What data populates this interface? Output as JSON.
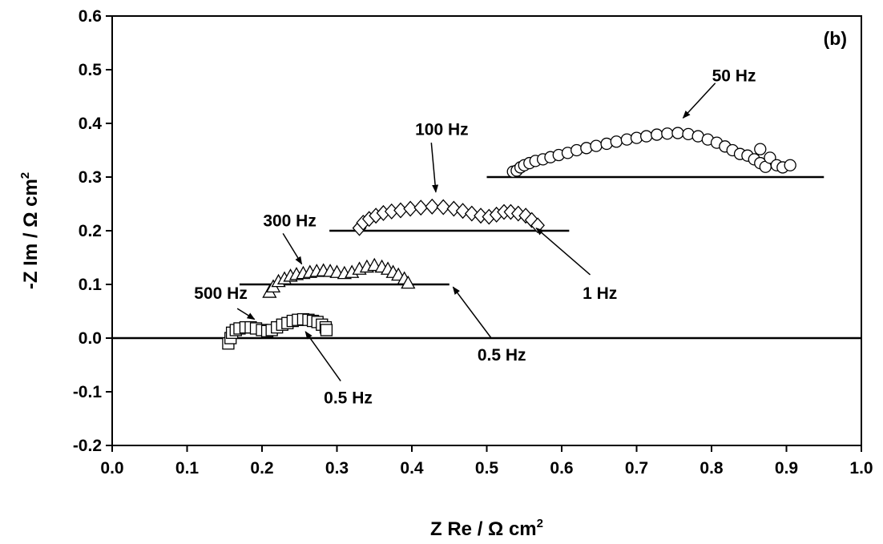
{
  "chart_data": {
    "type": "scatter",
    "panel_label": "(b)",
    "xlabel": {
      "main": "Z Re / Ω cm",
      "sup": "2"
    },
    "ylabel": {
      "main": "-Z Im / Ω cm",
      "sup": "2"
    },
    "xlim": [
      0.0,
      1.0
    ],
    "ylim": [
      -0.2,
      0.6
    ],
    "x_ticks": [
      0.0,
      0.1,
      0.2,
      0.3,
      0.4,
      0.5,
      0.6,
      0.7,
      0.8,
      0.9,
      1.0
    ],
    "y_ticks": [
      -0.2,
      -0.1,
      0.0,
      0.1,
      0.2,
      0.3,
      0.4,
      0.5,
      0.6
    ],
    "x_tick_labels": [
      "0.0",
      "0.1",
      "0.2",
      "0.3",
      "0.4",
      "0.5",
      "0.6",
      "0.7",
      "0.8",
      "0.9",
      "1.0"
    ],
    "y_tick_labels": [
      "-0.2",
      "-0.1",
      "0.0",
      "0.1",
      "0.2",
      "0.3",
      "0.4",
      "0.5",
      "0.6"
    ],
    "grid": false,
    "baselines": [
      {
        "y": 0.0,
        "x": [
          0.0,
          1.0
        ]
      },
      {
        "y": 0.1,
        "x": [
          0.17,
          0.45
        ]
      },
      {
        "y": 0.2,
        "x": [
          0.29,
          0.61
        ]
      },
      {
        "y": 0.3,
        "x": [
          0.5,
          0.95
        ]
      }
    ],
    "series": [
      {
        "marker": "square",
        "points": [
          [
            0.155,
            -0.01
          ],
          [
            0.158,
            0.0
          ],
          [
            0.16,
            0.01
          ],
          [
            0.165,
            0.015
          ],
          [
            0.17,
            0.018
          ],
          [
            0.178,
            0.02
          ],
          [
            0.185,
            0.02
          ],
          [
            0.192,
            0.018
          ],
          [
            0.2,
            0.015
          ],
          [
            0.207,
            0.013
          ],
          [
            0.213,
            0.015
          ],
          [
            0.22,
            0.02
          ],
          [
            0.227,
            0.025
          ],
          [
            0.234,
            0.028
          ],
          [
            0.241,
            0.032
          ],
          [
            0.248,
            0.034
          ],
          [
            0.255,
            0.035
          ],
          [
            0.262,
            0.034
          ],
          [
            0.268,
            0.032
          ],
          [
            0.274,
            0.03
          ],
          [
            0.28,
            0.025
          ],
          [
            0.285,
            0.02
          ],
          [
            0.286,
            0.015
          ]
        ]
      },
      {
        "marker": "triangle",
        "points": [
          [
            0.21,
            0.085
          ],
          [
            0.215,
            0.095
          ],
          [
            0.222,
            0.105
          ],
          [
            0.23,
            0.11
          ],
          [
            0.238,
            0.115
          ],
          [
            0.246,
            0.118
          ],
          [
            0.255,
            0.12
          ],
          [
            0.264,
            0.122
          ],
          [
            0.273,
            0.124
          ],
          [
            0.282,
            0.125
          ],
          [
            0.291,
            0.124
          ],
          [
            0.3,
            0.122
          ],
          [
            0.31,
            0.12
          ],
          [
            0.32,
            0.122
          ],
          [
            0.33,
            0.128
          ],
          [
            0.34,
            0.132
          ],
          [
            0.35,
            0.135
          ],
          [
            0.36,
            0.132
          ],
          [
            0.368,
            0.128
          ],
          [
            0.375,
            0.122
          ],
          [
            0.382,
            0.117
          ],
          [
            0.39,
            0.11
          ],
          [
            0.395,
            0.102
          ]
        ]
      },
      {
        "marker": "diamond",
        "points": [
          [
            0.33,
            0.205
          ],
          [
            0.335,
            0.215
          ],
          [
            0.343,
            0.222
          ],
          [
            0.352,
            0.228
          ],
          [
            0.362,
            0.233
          ],
          [
            0.373,
            0.236
          ],
          [
            0.385,
            0.238
          ],
          [
            0.398,
            0.241
          ],
          [
            0.412,
            0.243
          ],
          [
            0.427,
            0.245
          ],
          [
            0.442,
            0.244
          ],
          [
            0.456,
            0.241
          ],
          [
            0.468,
            0.237
          ],
          [
            0.48,
            0.232
          ],
          [
            0.492,
            0.228
          ],
          [
            0.503,
            0.226
          ],
          [
            0.513,
            0.23
          ],
          [
            0.523,
            0.235
          ],
          [
            0.532,
            0.235
          ],
          [
            0.542,
            0.232
          ],
          [
            0.552,
            0.228
          ],
          [
            0.56,
            0.22
          ],
          [
            0.568,
            0.21
          ]
        ]
      },
      {
        "marker": "circle",
        "points": [
          [
            0.535,
            0.31
          ],
          [
            0.54,
            0.312
          ],
          [
            0.545,
            0.318
          ],
          [
            0.55,
            0.322
          ],
          [
            0.557,
            0.326
          ],
          [
            0.565,
            0.33
          ],
          [
            0.575,
            0.333
          ],
          [
            0.585,
            0.337
          ],
          [
            0.596,
            0.341
          ],
          [
            0.608,
            0.345
          ],
          [
            0.62,
            0.35
          ],
          [
            0.633,
            0.354
          ],
          [
            0.646,
            0.358
          ],
          [
            0.66,
            0.362
          ],
          [
            0.673,
            0.366
          ],
          [
            0.687,
            0.37
          ],
          [
            0.7,
            0.373
          ],
          [
            0.713,
            0.376
          ],
          [
            0.727,
            0.379
          ],
          [
            0.741,
            0.381
          ],
          [
            0.755,
            0.382
          ],
          [
            0.769,
            0.38
          ],
          [
            0.782,
            0.376
          ],
          [
            0.795,
            0.37
          ],
          [
            0.807,
            0.364
          ],
          [
            0.818,
            0.357
          ],
          [
            0.828,
            0.35
          ],
          [
            0.838,
            0.343
          ],
          [
            0.848,
            0.34
          ],
          [
            0.857,
            0.333
          ],
          [
            0.865,
            0.326
          ],
          [
            0.872,
            0.319
          ],
          [
            0.865,
            0.352
          ],
          [
            0.878,
            0.336
          ],
          [
            0.887,
            0.322
          ],
          [
            0.895,
            0.318
          ],
          [
            0.905,
            0.322
          ]
        ]
      }
    ],
    "annotations": [
      {
        "text": "500 Hz",
        "label_at": [
          0.145,
          0.085
        ],
        "arrow_from": [
          0.167,
          0.055
        ],
        "arrow_to": [
          0.19,
          0.035
        ]
      },
      {
        "text": "300 Hz",
        "label_at": [
          0.237,
          0.22
        ],
        "arrow_from": [
          0.228,
          0.195
        ],
        "arrow_to": [
          0.253,
          0.138
        ]
      },
      {
        "text": "100 Hz",
        "label_at": [
          0.44,
          0.39
        ],
        "arrow_from": [
          0.426,
          0.364
        ],
        "arrow_to": [
          0.432,
          0.272
        ]
      },
      {
        "text": "50 Hz",
        "label_at": [
          0.83,
          0.49
        ],
        "arrow_from": [
          0.805,
          0.475
        ],
        "arrow_to": [
          0.762,
          0.41
        ]
      },
      {
        "text": "1 Hz",
        "label_at": [
          0.651,
          0.085
        ],
        "arrow_from": [
          0.638,
          0.118
        ],
        "arrow_to": [
          0.566,
          0.205
        ]
      },
      {
        "text": "0.5 Hz",
        "label_at": [
          0.52,
          -0.03
        ],
        "arrow_from": [
          0.506,
          0.0
        ],
        "arrow_to": [
          0.455,
          0.095
        ]
      },
      {
        "text": "0.5 Hz",
        "label_at": [
          0.315,
          -0.11
        ],
        "arrow_from": [
          0.305,
          -0.08
        ],
        "arrow_to": [
          0.258,
          0.012
        ]
      }
    ]
  }
}
